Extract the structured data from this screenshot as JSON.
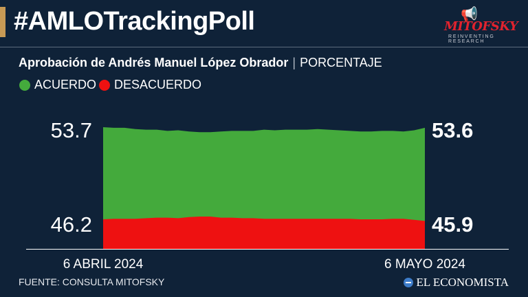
{
  "header": {
    "hashtag": "#AMLOTrackingPoll",
    "brand_name": "MITOFSKY",
    "brand_tagline": "REINVENTING RESEARCH",
    "brand_icon": "megaphone-icon"
  },
  "subtitle": {
    "main": "Aprobación de Andrés Manuel López Obrador",
    "separator": "|",
    "unit": "PORCENTAJE"
  },
  "legend": [
    {
      "label": "ACUERDO",
      "color": "#44aa3c"
    },
    {
      "label": "DESACUERDO",
      "color": "#ee1111"
    }
  ],
  "chart_data": {
    "type": "area",
    "x_start_label": "6 ABRIL 2024",
    "x_end_label": "6 MAYO 2024",
    "start_labels": {
      "acuerdo": "53.7",
      "desacuerdo": "46.2"
    },
    "end_labels": {
      "acuerdo": "53.6",
      "desacuerdo": "45.9"
    },
    "series": [
      {
        "name": "ACUERDO",
        "color": "#44aa3c",
        "values": [
          53.7,
          53.6,
          53.6,
          53.4,
          53.3,
          53.3,
          53.1,
          53.2,
          53.0,
          52.9,
          52.9,
          53.0,
          53.1,
          53.1,
          53.1,
          53.3,
          53.2,
          53.3,
          53.3,
          53.3,
          53.4,
          53.3,
          53.2,
          53.1,
          53.0,
          53.0,
          53.1,
          53.1,
          53.0,
          53.2,
          53.6
        ]
      },
      {
        "name": "DESACUERDO",
        "color": "#ee1111",
        "values": [
          46.2,
          46.3,
          46.3,
          46.3,
          46.4,
          46.5,
          46.5,
          46.4,
          46.6,
          46.7,
          46.7,
          46.5,
          46.5,
          46.4,
          46.4,
          46.3,
          46.3,
          46.3,
          46.3,
          46.3,
          46.3,
          46.3,
          46.3,
          46.3,
          46.2,
          46.2,
          46.2,
          46.3,
          46.3,
          46.1,
          45.9
        ]
      }
    ],
    "grid": false,
    "legend_position": "top-left"
  },
  "footer": {
    "source": "FUENTE: CONSULTA MITOFSKY",
    "publisher": "EL ECONOMISTA"
  },
  "colors": {
    "background": "#0f2238",
    "accent": "#c79a55",
    "acuerdo": "#44aa3c",
    "desacuerdo": "#ee1111"
  }
}
